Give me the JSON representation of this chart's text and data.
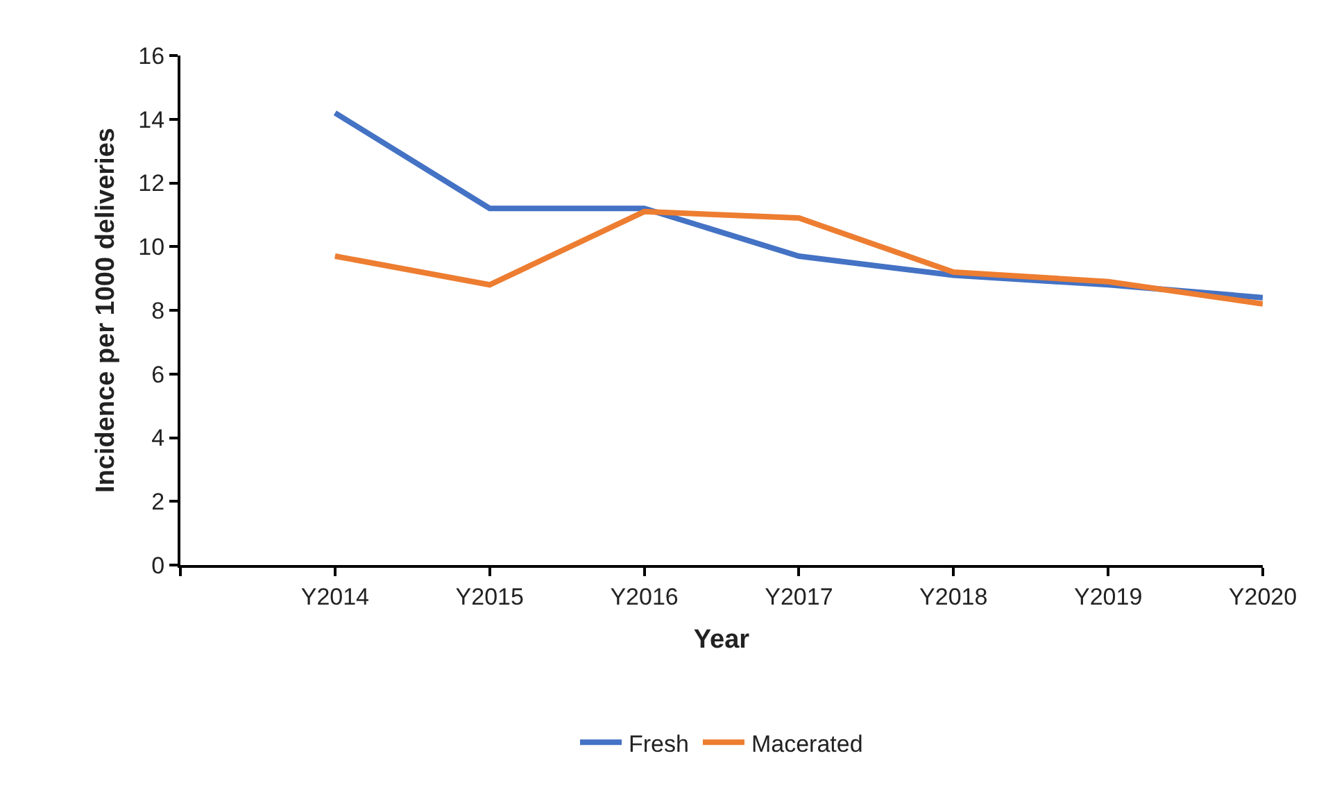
{
  "chart_data": {
    "type": "line",
    "xlabel": "Year",
    "ylabel": "Incidence per 1000 deliveries",
    "categories": [
      null,
      "Y2014",
      "Y2015",
      "Y2016",
      "Y2017",
      "Y2018",
      "Y2019",
      "Y2020"
    ],
    "series": [
      {
        "name": "Fresh",
        "color": "#4472c4",
        "values": [
          null,
          14.2,
          11.2,
          11.2,
          9.7,
          9.1,
          8.8,
          8.4
        ]
      },
      {
        "name": "Macerated",
        "color": "#ed7d31",
        "values": [
          null,
          9.7,
          8.8,
          11.1,
          10.9,
          9.2,
          8.9,
          8.2
        ]
      }
    ],
    "ylim": [
      0,
      16
    ],
    "yticks": [
      0,
      2,
      4,
      6,
      8,
      10,
      12,
      14,
      16
    ],
    "legend": "bottom",
    "marker": "none",
    "line_style": "solid"
  }
}
